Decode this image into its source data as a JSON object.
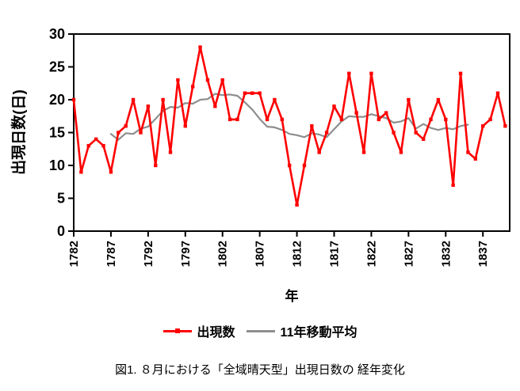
{
  "figure": {
    "caption": "図1. ８月における「全域晴天型」出現日数の 経年変化"
  },
  "colors": {
    "series_red": "#FF0000",
    "series_gray": "#8E8E8E",
    "axis_black": "#000000",
    "background": "#FFFFFF"
  },
  "chart_data": {
    "type": "line",
    "title": "",
    "xlabel": "年",
    "ylabel": "出現日数(日)",
    "ylim": [
      0,
      30
    ],
    "ytick_step": 5,
    "xticks": [
      1782,
      1787,
      1792,
      1797,
      1802,
      1807,
      1812,
      1817,
      1822,
      1827,
      1832,
      1837
    ],
    "x_range": [
      1782,
      1840
    ],
    "grid": false,
    "legend_position": "bottom",
    "series": [
      {
        "name": "出現数",
        "color": "#FF0000",
        "marker": true,
        "line_width": 2.6,
        "x_start": 1782,
        "values": [
          20,
          9,
          13,
          14,
          13,
          9,
          15,
          16,
          20,
          15,
          19,
          10,
          20,
          12,
          23,
          16,
          22,
          28,
          23,
          19,
          23,
          17,
          17,
          21,
          21,
          21,
          17,
          20,
          17,
          10,
          4,
          10,
          16,
          12,
          15,
          19,
          17,
          24,
          18,
          12,
          24,
          17,
          18,
          15,
          12,
          20,
          15,
          14,
          17,
          20,
          17,
          7,
          24,
          12,
          11,
          16,
          17,
          21,
          16
        ]
      },
      {
        "name": "11年移動平均",
        "color": "#8E8E8E",
        "marker": false,
        "line_width": 2.2,
        "x_start": 1787,
        "values": [
          14.8,
          13.9,
          14.9,
          14.8,
          15.6,
          15.9,
          17.1,
          18.3,
          18.9,
          18.8,
          19.5,
          19.4,
          20.0,
          20.1,
          20.9,
          20.7,
          20.8,
          20.6,
          19.6,
          18.5,
          17.1,
          15.9,
          15.8,
          15.4,
          14.8,
          14.6,
          14.3,
          14.9,
          14.7,
          14.3,
          15.5,
          16.7,
          17.5,
          17.4,
          17.4,
          17.8,
          17.5,
          17.2,
          16.5,
          16.7,
          17.2,
          15.6,
          16.3,
          15.7,
          15.4,
          15.7,
          15.5,
          16.0,
          16.2
        ]
      }
    ]
  }
}
